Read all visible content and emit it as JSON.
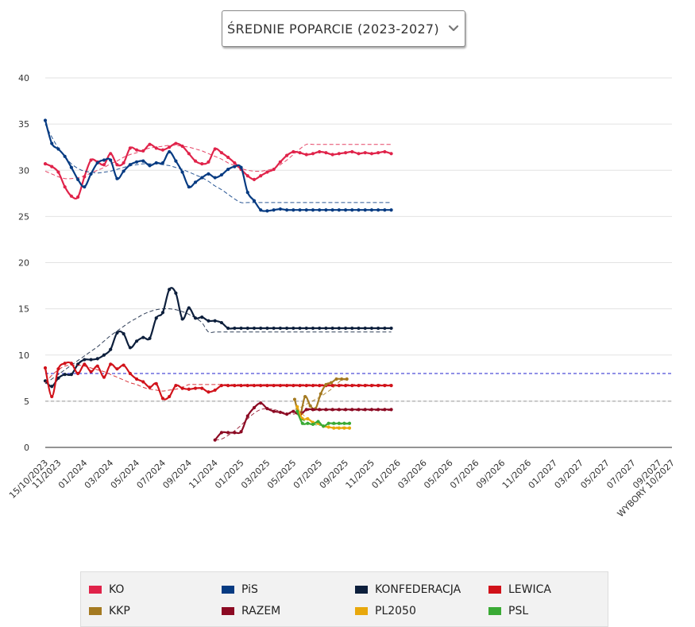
{
  "selector": {
    "label": "ŚREDNIE POPARCIE (2023-2027)"
  },
  "chart_data": {
    "type": "line",
    "title": "ŚREDNIE POPARCIE (2023-2027)",
    "ylim": [
      0,
      40
    ],
    "yticks": [
      0,
      5,
      10,
      15,
      20,
      25,
      30,
      35,
      40
    ],
    "x_range_months": [
      0,
      48
    ],
    "x_ticks": [
      {
        "label": "15/10/2023",
        "m": 0
      },
      {
        "label": "11/2023",
        "m": 1
      },
      {
        "label": "01/2024",
        "m": 3
      },
      {
        "label": "03/2024",
        "m": 5
      },
      {
        "label": "05/2024",
        "m": 7
      },
      {
        "label": "07/2024",
        "m": 9
      },
      {
        "label": "09/2024",
        "m": 11
      },
      {
        "label": "11/2024",
        "m": 13
      },
      {
        "label": "01/2025",
        "m": 15
      },
      {
        "label": "03/2025",
        "m": 17
      },
      {
        "label": "05/2025",
        "m": 19
      },
      {
        "label": "07/2025",
        "m": 21
      },
      {
        "label": "09/2025",
        "m": 23
      },
      {
        "label": "11/2025",
        "m": 25
      },
      {
        "label": "01/2026",
        "m": 27
      },
      {
        "label": "03/2026",
        "m": 29
      },
      {
        "label": "05/2026",
        "m": 31
      },
      {
        "label": "07/2026",
        "m": 33
      },
      {
        "label": "09/2026",
        "m": 35
      },
      {
        "label": "11/2026",
        "m": 37
      },
      {
        "label": "01/2027",
        "m": 39
      },
      {
        "label": "03/2027",
        "m": 41
      },
      {
        "label": "05/2027",
        "m": 43
      },
      {
        "label": "07/2027",
        "m": 45
      },
      {
        "label": "09/2027",
        "m": 47
      },
      {
        "label": "WYBORY 10/2027",
        "m": 48
      }
    ],
    "reference_lines": [
      {
        "name": "threshold-8",
        "value": 8,
        "color": "#2020cc"
      },
      {
        "name": "threshold-5",
        "value": 5,
        "color": "#999999"
      }
    ],
    "series": [
      {
        "name": "KO",
        "color": "#e0234a",
        "x": [
          0,
          0.5,
          1,
          1.5,
          2,
          2.5,
          3,
          3.5,
          4,
          4.5,
          5,
          5.5,
          6,
          6.5,
          7,
          7.5,
          8,
          8.5,
          9,
          9.5,
          10,
          10.5,
          11,
          11.5,
          12,
          12.5,
          13,
          13.5,
          14,
          14.5,
          15,
          15.5,
          16,
          16.5,
          17,
          17.5,
          18,
          18.5,
          19,
          19.5,
          20,
          20.5,
          21,
          21.5,
          22,
          22.5,
          23,
          23.5,
          24,
          24.5,
          25,
          25.5,
          26,
          26.5
        ],
        "values": [
          30.7,
          30.4,
          29.8,
          28.2,
          27.2,
          27.1,
          29.3,
          31.1,
          30.9,
          30.6,
          31.8,
          30.6,
          30.8,
          32.4,
          32.2,
          32.1,
          32.8,
          32.4,
          32.2,
          32.5,
          32.9,
          32.6,
          31.8,
          31.0,
          30.7,
          30.9,
          32.3,
          31.9,
          31.4,
          30.8,
          30.1,
          29.4,
          29.0,
          29.4,
          29.8,
          30.1,
          30.9,
          31.6,
          32.0,
          31.9,
          31.7,
          31.8,
          32.0,
          31.9,
          31.7,
          31.8,
          31.9,
          32.0,
          31.8,
          31.9,
          31.8,
          31.9,
          32.0,
          31.8
        ],
        "trend": [
          29.9,
          29.6,
          29.3,
          29.1,
          29.1,
          29.2,
          29.4,
          29.7,
          30.0,
          30.3,
          30.7,
          31.0,
          31.4,
          31.7,
          31.9,
          32.2,
          32.4,
          32.5,
          32.6,
          32.7,
          32.7,
          32.6,
          32.5,
          32.3,
          32.1,
          31.8,
          31.5,
          31.2,
          30.8,
          30.5,
          30.2,
          30.0,
          29.9,
          29.9,
          30.0,
          30.2,
          30.6,
          31.1,
          31.7,
          32.3,
          32.8,
          32.8,
          32.8,
          32.8,
          32.8,
          32.8,
          32.8,
          32.8,
          32.8,
          32.8,
          32.8,
          32.8,
          32.8,
          32.8
        ]
      },
      {
        "name": "PiS",
        "color": "#063b82",
        "x": [
          0,
          0.5,
          1,
          1.5,
          2,
          2.5,
          3,
          3.5,
          4,
          4.5,
          5,
          5.5,
          6,
          6.5,
          7,
          7.5,
          8,
          8.5,
          9,
          9.5,
          10,
          10.5,
          11,
          11.5,
          12,
          12.5,
          13,
          13.5,
          14,
          14.5,
          15,
          15.5,
          16,
          16.5,
          17,
          17.5,
          18,
          18.5,
          19,
          19.5,
          20,
          20.5,
          21,
          21.5,
          22,
          22.5,
          23,
          23.5,
          24,
          24.5,
          25,
          25.5,
          26,
          26.5
        ],
        "values": [
          35.4,
          32.9,
          32.3,
          31.5,
          30.3,
          29.0,
          28.2,
          29.6,
          30.8,
          31.1,
          31.1,
          29.1,
          29.9,
          30.6,
          30.9,
          31.0,
          30.5,
          30.8,
          30.8,
          32.0,
          31.0,
          29.8,
          28.2,
          28.7,
          29.2,
          29.6,
          29.2,
          29.5,
          30.1,
          30.4,
          30.3,
          27.6,
          26.7,
          25.7,
          25.6,
          25.7,
          25.8,
          25.7,
          25.7,
          25.7,
          25.7,
          25.7,
          25.7,
          25.7,
          25.7,
          25.7,
          25.7,
          25.7,
          25.7,
          25.7,
          25.7,
          25.7,
          25.7,
          25.7
        ],
        "trend": [
          35.0,
          33.6,
          32.4,
          31.5,
          30.7,
          30.2,
          29.9,
          29.8,
          29.7,
          29.8,
          29.9,
          30.1,
          30.3,
          30.5,
          30.6,
          30.7,
          30.7,
          30.7,
          30.6,
          30.5,
          30.3,
          30.1,
          29.8,
          29.5,
          29.2,
          28.8,
          28.3,
          27.9,
          27.4,
          26.9,
          26.5,
          26.5,
          26.5,
          26.5,
          26.5,
          26.5,
          26.5,
          26.5,
          26.5,
          26.5,
          26.5,
          26.5,
          26.5,
          26.5,
          26.5,
          26.5,
          26.5,
          26.5,
          26.5,
          26.5,
          26.5,
          26.5,
          26.5,
          26.5
        ]
      },
      {
        "name": "KONFEDERACJA",
        "color": "#0d1f3c",
        "x": [
          0,
          0.5,
          1,
          1.5,
          2,
          2.5,
          3,
          3.5,
          4,
          4.5,
          5,
          5.5,
          6,
          6.5,
          7,
          7.5,
          8,
          8.5,
          9,
          9.5,
          10,
          10.5,
          11,
          11.5,
          12,
          12.5,
          13,
          13.5,
          14,
          14.5,
          15,
          15.5,
          16,
          16.5,
          17,
          17.5,
          18,
          18.5,
          19,
          19.5,
          20,
          20.5,
          21,
          21.5,
          22,
          22.5,
          23,
          23.5,
          24,
          24.5,
          25,
          25.5,
          26,
          26.5
        ],
        "values": [
          7.2,
          6.6,
          7.5,
          7.9,
          7.9,
          9.0,
          9.5,
          9.5,
          9.6,
          10.0,
          10.6,
          12.4,
          12.3,
          10.8,
          11.5,
          11.9,
          11.8,
          14.0,
          14.6,
          17.1,
          16.7,
          13.9,
          15.1,
          14.0,
          14.1,
          13.7,
          13.7,
          13.5,
          12.9,
          12.9,
          12.9,
          12.9,
          12.9,
          12.9,
          12.9,
          12.9,
          12.9,
          12.9,
          12.9,
          12.9,
          12.9,
          12.9,
          12.9,
          12.9,
          12.9,
          12.9,
          12.9,
          12.9,
          12.9,
          12.9,
          12.9,
          12.9,
          12.9,
          12.9
        ],
        "trend": [
          6.9,
          7.4,
          7.9,
          8.4,
          8.9,
          9.4,
          9.9,
          10.4,
          10.9,
          11.5,
          12.1,
          12.6,
          13.1,
          13.6,
          14.0,
          14.4,
          14.7,
          14.9,
          15.0,
          15.0,
          14.9,
          14.7,
          14.4,
          14.0,
          13.5,
          12.5,
          12.5,
          12.5,
          12.5,
          12.5,
          12.5,
          12.5,
          12.5,
          12.5,
          12.5,
          12.5,
          12.5,
          12.5,
          12.5,
          12.5,
          12.5,
          12.5,
          12.5,
          12.5,
          12.5,
          12.5,
          12.5,
          12.5,
          12.5,
          12.5,
          12.5,
          12.5,
          12.5,
          12.5
        ]
      },
      {
        "name": "LEWICA",
        "color": "#d1121a",
        "x": [
          0,
          0.5,
          1,
          1.5,
          2,
          2.5,
          3,
          3.5,
          4,
          4.5,
          5,
          5.5,
          6,
          6.5,
          7,
          7.5,
          8,
          8.5,
          9,
          9.5,
          10,
          10.5,
          11,
          11.5,
          12,
          12.5,
          13,
          13.5,
          14,
          14.5,
          15,
          15.5,
          16,
          16.5,
          17,
          17.5,
          18,
          18.5,
          19,
          19.5,
          20,
          20.5,
          21,
          21.5,
          22,
          22.5,
          23,
          23.5,
          24,
          24.5,
          25,
          25.5,
          26,
          26.5
        ],
        "values": [
          8.6,
          5.5,
          8.5,
          9.1,
          9.1,
          8.0,
          9.0,
          8.2,
          8.8,
          7.6,
          9.0,
          8.5,
          8.9,
          8.0,
          7.4,
          7.1,
          6.5,
          6.9,
          5.3,
          5.5,
          6.7,
          6.4,
          6.3,
          6.4,
          6.4,
          6.0,
          6.2,
          6.7,
          6.7,
          6.7,
          6.7,
          6.7,
          6.7,
          6.7,
          6.7,
          6.7,
          6.7,
          6.7,
          6.7,
          6.7,
          6.7,
          6.7,
          6.7,
          6.7,
          6.7,
          6.7,
          6.7,
          6.7,
          6.7,
          6.7,
          6.7,
          6.7,
          6.7,
          6.7
        ],
        "trend": [
          7.0,
          7.8,
          8.4,
          8.8,
          8.9,
          8.9,
          8.8,
          8.6,
          8.4,
          8.2,
          7.9,
          7.6,
          7.3,
          7.0,
          6.8,
          6.5,
          6.3,
          6.2,
          6.1,
          6.2,
          6.3,
          6.5,
          6.8,
          6.8,
          6.8,
          6.8,
          6.8,
          6.8,
          6.8,
          6.8,
          6.8,
          6.8,
          6.8,
          6.8,
          6.8,
          6.8,
          6.8,
          6.8,
          6.8,
          6.8,
          6.8,
          6.8,
          6.8,
          6.8,
          6.8,
          6.8,
          6.8,
          6.8,
          6.8,
          6.8,
          6.8,
          6.8,
          6.8,
          6.8
        ]
      },
      {
        "name": "KKP",
        "color": "#a47a21",
        "x": [
          19.1,
          19.5,
          19.9,
          20.3,
          20.7,
          21.1,
          21.5,
          21.9,
          22.3,
          22.7,
          23.1
        ],
        "values": [
          5.2,
          3.5,
          5.5,
          4.5,
          4.2,
          5.8,
          6.8,
          7.0,
          7.4,
          7.4,
          7.4
        ],
        "trend": [
          4.1,
          4.3,
          4.6,
          4.9,
          5.2,
          5.5,
          5.9,
          6.3,
          6.8,
          7.3,
          7.3
        ]
      },
      {
        "name": "RAZEM",
        "color": "#8c0a23",
        "x": [
          13,
          13.5,
          14,
          14.5,
          15,
          15.5,
          16,
          16.5,
          17,
          17.5,
          18,
          18.5,
          19,
          19.5,
          20,
          20.5,
          21,
          21.5,
          22,
          22.5,
          23,
          23.5,
          24,
          24.5,
          25,
          25.5,
          26,
          26.5
        ],
        "values": [
          0.8,
          1.6,
          1.6,
          1.6,
          1.7,
          3.4,
          4.3,
          4.8,
          4.2,
          3.9,
          3.8,
          3.6,
          3.9,
          3.5,
          4.1,
          4.1,
          4.1,
          4.1,
          4.1,
          4.1,
          4.1,
          4.1,
          4.1,
          4.1,
          4.1,
          4.1,
          4.1,
          4.1
        ],
        "trend": [
          0.8,
          0.9,
          1.3,
          1.8,
          2.4,
          3.1,
          3.7,
          4.1,
          4.2,
          4.1,
          3.9,
          3.7,
          3.6,
          3.8,
          4.0,
          4.0,
          4.0,
          4.0,
          4.0,
          4.0,
          4.0,
          4.0,
          4.0,
          4.0,
          4.0,
          4.0,
          4.0,
          4.0
        ]
      },
      {
        "name": "PL2050",
        "color": "#e8a80c",
        "x": [
          19.3,
          19.7,
          20.1,
          20.5,
          20.9,
          21.3,
          21.7,
          22.1,
          22.5,
          22.9,
          23.3
        ],
        "values": [
          4.4,
          3.1,
          3.1,
          2.7,
          2.6,
          2.3,
          2.2,
          2.1,
          2.1,
          2.1,
          2.1
        ],
        "trend": [
          4.2,
          3.6,
          3.1,
          2.7,
          2.5,
          2.3,
          2.2,
          2.2,
          2.2,
          2.2,
          2.2
        ]
      },
      {
        "name": "PSL",
        "color": "#3aaa35",
        "x": [
          19.3,
          19.7,
          20.1,
          20.5,
          20.9,
          21.3,
          21.7,
          22.1,
          22.5,
          22.9,
          23.3
        ],
        "values": [
          3.9,
          2.6,
          2.6,
          2.5,
          2.8,
          2.3,
          2.6,
          2.6,
          2.6,
          2.6,
          2.6
        ],
        "trend": [
          3.6,
          3.0,
          2.7,
          2.5,
          2.4,
          2.4,
          2.5,
          2.5,
          2.5,
          2.5,
          2.5
        ]
      }
    ],
    "legend": [
      {
        "label": "KO",
        "color": "#e0234a"
      },
      {
        "label": "PiS",
        "color": "#063b82"
      },
      {
        "label": "KONFEDERACJA",
        "color": "#0d1f3c"
      },
      {
        "label": "LEWICA",
        "color": "#d1121a"
      },
      {
        "label": "KKP",
        "color": "#a47a21"
      },
      {
        "label": "RAZEM",
        "color": "#8c0a23"
      },
      {
        "label": "PL2050",
        "color": "#e8a80c"
      },
      {
        "label": "PSL",
        "color": "#3aaa35"
      }
    ]
  }
}
